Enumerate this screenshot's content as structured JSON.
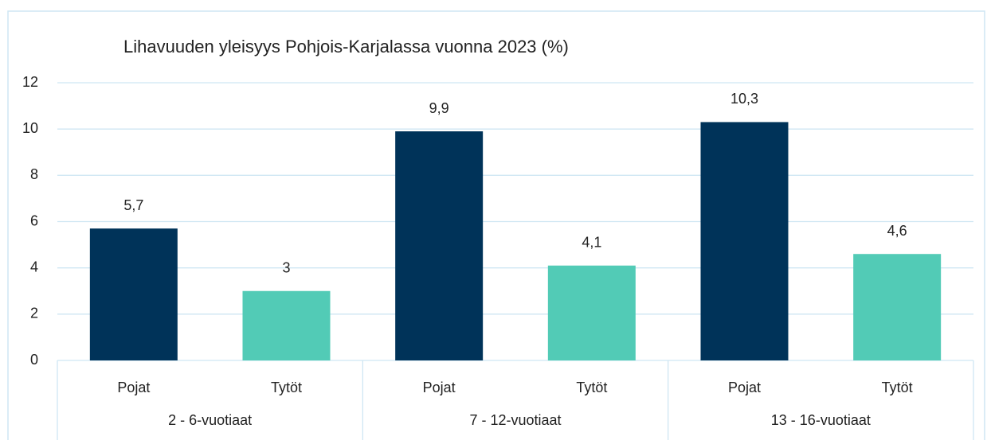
{
  "chart_data": {
    "type": "bar",
    "title": "Lihavuuden yleisyys Pohjois-Karjalassa vuonna 2023 (%)",
    "categories": [
      "Pojat",
      "Tytöt",
      "Pojat",
      "Tytöt",
      "Pojat",
      "Tytöt"
    ],
    "groups": [
      "2 - 6-vuotiaat",
      "7 - 12-vuotiaat",
      "13 - 16-vuotiaat"
    ],
    "values": [
      5.7,
      3,
      9.9,
      4.1,
      10.3,
      4.6
    ],
    "value_labels": [
      "5,7",
      "3",
      "9,9",
      "4,1",
      "10,3",
      "4,6"
    ],
    "colors": [
      "#003359",
      "#52cbb6",
      "#003359",
      "#52cbb6",
      "#003359",
      "#52cbb6"
    ],
    "ylim": [
      0,
      12
    ],
    "yticks": [
      0,
      2,
      4,
      6,
      8,
      10,
      12
    ],
    "grid": true
  }
}
